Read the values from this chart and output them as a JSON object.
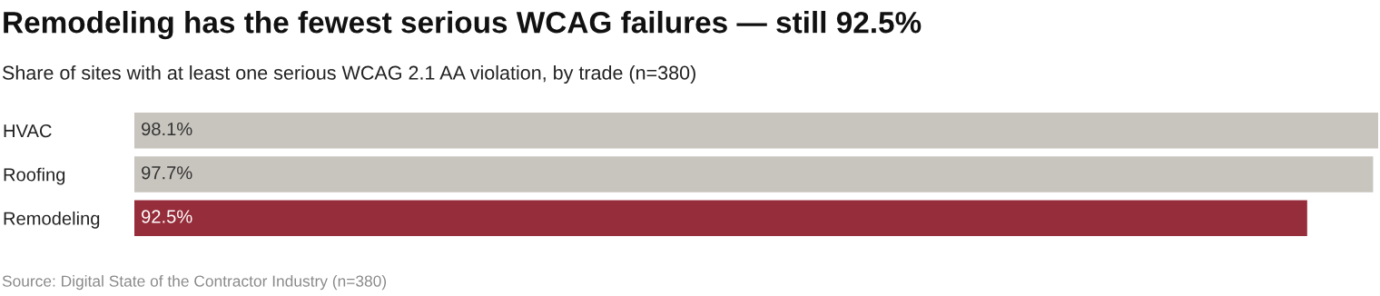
{
  "chart_data": {
    "type": "bar",
    "orientation": "horizontal",
    "title": "Remodeling has the fewest serious WCAG failures — still 92.5%",
    "subtitle": "Share of sites with at least one serious WCAG 2.1 AA violation, by trade (n=380)",
    "categories": [
      "HVAC",
      "Roofing",
      "Remodeling"
    ],
    "values": [
      98.1,
      97.7,
      92.5
    ],
    "colors": [
      "#c8c5be",
      "#c8c5be",
      "#962d3a"
    ],
    "value_labels": [
      "98.1%",
      "97.7%",
      "92.5%"
    ],
    "xlim": [
      0,
      98.1
    ],
    "tick_labels": "y",
    "grid": false,
    "legend": false,
    "annotations": [
      "Source: Digital State of the Contractor Industry (n=380)"
    ]
  }
}
